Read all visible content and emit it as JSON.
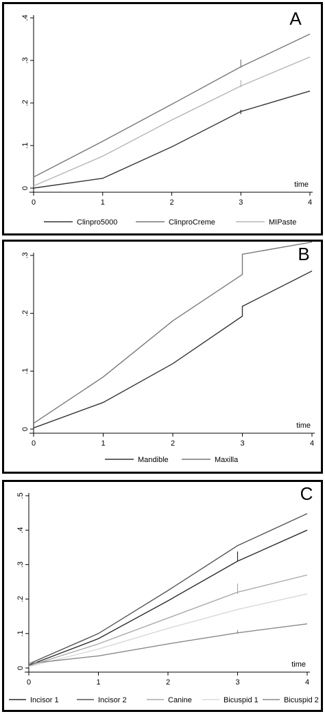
{
  "chart_data": [
    {
      "type": "line",
      "panel_letter": "A",
      "xlabel": "time",
      "ylabel": "",
      "xlim": [
        0,
        4
      ],
      "ylim": [
        0,
        0.4
      ],
      "x_ticks": [
        "0",
        "1",
        "2",
        "3",
        "4"
      ],
      "y_ticks": [
        "0",
        ".1",
        ".2",
        ".3",
        ".4"
      ],
      "x": [
        0,
        1,
        2,
        3,
        4
      ],
      "series": [
        {
          "name": "Clinpro5000",
          "color": "#333333",
          "values": [
            0.0,
            0.023,
            0.097,
            0.18,
            0.228
          ],
          "ci_at_x3": [
            0.174,
            0.184
          ]
        },
        {
          "name": "ClinproCreme",
          "color": "#777777",
          "values": [
            0.026,
            0.11,
            0.197,
            0.285,
            0.362
          ],
          "ci_at_x3": [
            0.283,
            0.302
          ]
        },
        {
          "name": "MIPaste",
          "color": "#b5b5b5",
          "values": [
            0.005,
            0.075,
            0.16,
            0.24,
            0.308
          ],
          "ci_at_x3": [
            0.237,
            0.254
          ]
        }
      ],
      "grid": false,
      "legend_position": "bottom"
    },
    {
      "type": "line",
      "panel_letter": "B",
      "xlabel": "time",
      "ylabel": "",
      "xlim": [
        0,
        4
      ],
      "ylim": [
        0,
        0.3
      ],
      "x_ticks": [
        "0",
        "1",
        "2",
        "3",
        "4"
      ],
      "y_ticks": [
        "0",
        ".1",
        ".2",
        ".3"
      ],
      "x": [
        0,
        1,
        2,
        3,
        3,
        4
      ],
      "series": [
        {
          "name": "Mandible",
          "color": "#333333",
          "values": [
            0.002,
            0.046,
            0.113,
            0.195,
            0.212,
            0.273
          ]
        },
        {
          "name": "Maxilla",
          "color": "#777777",
          "values": [
            0.01,
            0.09,
            0.187,
            0.267,
            0.302,
            0.323
          ]
        }
      ],
      "grid": false,
      "legend_position": "bottom"
    },
    {
      "type": "line",
      "panel_letter": "C",
      "xlabel": "time",
      "ylabel": "",
      "xlim": [
        0,
        4
      ],
      "ylim": [
        0,
        0.5
      ],
      "x_ticks": [
        "0",
        "1",
        "2",
        "3",
        "4"
      ],
      "y_ticks": [
        "0",
        ".1",
        ".2",
        ".3",
        ".4",
        ".5"
      ],
      "x": [
        0,
        1,
        2,
        3,
        4
      ],
      "series": [
        {
          "name": "Incisor 1",
          "color": "#2a2a2a",
          "values": [
            0.008,
            0.085,
            0.195,
            0.31,
            0.4
          ],
          "ci_at_x3": [
            0.31,
            0.338
          ]
        },
        {
          "name": "Incisor 2",
          "color": "#555555",
          "values": [
            0.012,
            0.1,
            0.225,
            0.355,
            0.448
          ]
        },
        {
          "name": "Canine",
          "color": "#a8a8a8",
          "values": [
            0.006,
            0.07,
            0.145,
            0.22,
            0.27
          ],
          "ci_at_x3": [
            0.215,
            0.245
          ]
        },
        {
          "name": "Bicuspid 1",
          "color": "#d8d8d8",
          "values": [
            0.004,
            0.055,
            0.115,
            0.17,
            0.215
          ]
        },
        {
          "name": "Bicuspid 2",
          "color": "#888888",
          "values": [
            0.013,
            0.035,
            0.07,
            0.102,
            0.128
          ],
          "ci_at_x3": [
            0.1,
            0.11
          ]
        }
      ],
      "grid": false,
      "legend_position": "bottom"
    }
  ]
}
